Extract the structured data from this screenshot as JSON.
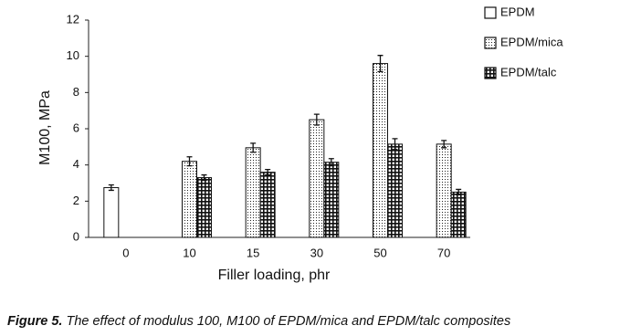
{
  "chart_data": {
    "type": "bar",
    "y_label": "M100, MPa",
    "x_label": "Filler loading, phr",
    "caption_label": "Figure 5.",
    "caption_text": "The effect of modulus 100, M100 of EPDM/mica and EPDM/talc composites",
    "categories": [
      "0",
      "10",
      "15",
      "30",
      "50",
      "70"
    ],
    "series": [
      {
        "name": "EPDM",
        "values": [
          2.75,
          null,
          null,
          null,
          null,
          null
        ],
        "errors": [
          0.15,
          null,
          null,
          null,
          null,
          null
        ]
      },
      {
        "name": "EPDM/mica",
        "values": [
          null,
          4.2,
          4.95,
          6.5,
          9.6,
          5.15
        ],
        "errors": [
          null,
          0.25,
          0.25,
          0.3,
          0.45,
          0.2
        ]
      },
      {
        "name": "EPDM/talc",
        "values": [
          null,
          3.3,
          3.6,
          4.15,
          5.15,
          2.5
        ],
        "errors": [
          null,
          0.15,
          0.15,
          0.2,
          0.3,
          0.15
        ]
      }
    ],
    "ylim": [
      0,
      12
    ],
    "yticks": [
      0,
      2,
      4,
      6,
      8,
      10,
      12
    ],
    "grid": false,
    "legend": "right"
  }
}
